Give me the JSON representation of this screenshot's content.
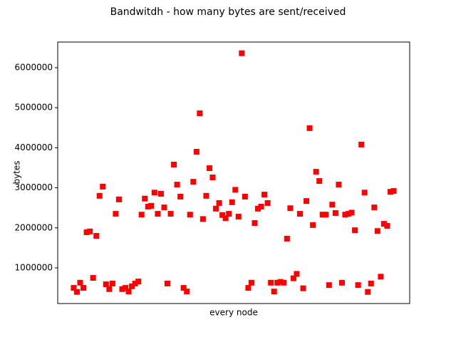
{
  "chart_data": {
    "type": "scatter",
    "title": "Bandwitdh - how many bytes are sent/received",
    "x_label": "every node",
    "y_label": "bytes",
    "marker": "square",
    "color": "#ff0000",
    "x": [
      0,
      1,
      2,
      3,
      4,
      5,
      6,
      7,
      8,
      9,
      10,
      11,
      12,
      13,
      14,
      15,
      16,
      17,
      18,
      19,
      20,
      21,
      22,
      23,
      24,
      25,
      26,
      27,
      28,
      29,
      30,
      31,
      32,
      33,
      34,
      35,
      36,
      37,
      38,
      39,
      40,
      41,
      42,
      43,
      44,
      45,
      46,
      47,
      48,
      49,
      50,
      51,
      52,
      53,
      54,
      55,
      56,
      57,
      58,
      59,
      60,
      61,
      62,
      63,
      64,
      65,
      66,
      67,
      68,
      69,
      70,
      71,
      72,
      73,
      74,
      75,
      76,
      77,
      78,
      79,
      80,
      81,
      82,
      83,
      84,
      85,
      86,
      87,
      88,
      89,
      90,
      91,
      92,
      93,
      94,
      95,
      96,
      97,
      98,
      99
    ],
    "values": [
      500000,
      400000,
      630000,
      500000,
      1890000,
      1910000,
      750000,
      1800000,
      2800000,
      3030000,
      590000,
      470000,
      610000,
      2350000,
      2710000,
      470000,
      500000,
      410000,
      540000,
      610000,
      660000,
      2330000,
      2730000,
      2530000,
      2550000,
      2880000,
      2350000,
      2850000,
      2510000,
      610000,
      2350000,
      3580000,
      3080000,
      2780000,
      500000,
      410000,
      2330000,
      3150000,
      3900000,
      4860000,
      2220000,
      2800000,
      3490000,
      3260000,
      2480000,
      2620000,
      2320000,
      2240000,
      2350000,
      2640000,
      2950000,
      2280000,
      6360000,
      2780000,
      500000,
      630000,
      2120000,
      2480000,
      2530000,
      2830000,
      2620000,
      630000,
      410000,
      630000,
      650000,
      630000,
      1730000,
      2490000,
      740000,
      850000,
      2350000,
      490000,
      2670000,
      4490000,
      2070000,
      3400000,
      3170000,
      2330000,
      2330000,
      570000,
      2580000,
      2370000,
      3080000,
      630000,
      2330000,
      2350000,
      2380000,
      1940000,
      570000,
      4080000,
      2880000,
      400000,
      610000,
      2510000,
      1920000,
      780000,
      2100000,
      2050000,
      2900000,
      2920000
    ],
    "xlim": [
      -4.95,
      103.95
    ],
    "ylim": [
      110000,
      6640000
    ],
    "yticks": [
      1000000,
      2000000,
      3000000,
      4000000,
      5000000,
      6000000
    ]
  }
}
